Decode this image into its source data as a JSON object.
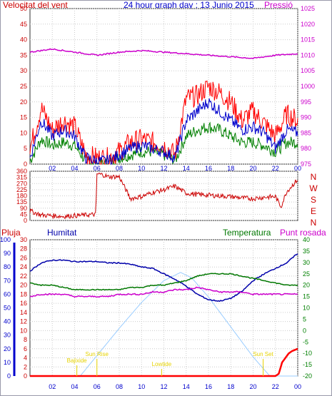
{
  "header": {
    "left_title": "Velocitat del vent",
    "center_title": "24 hour graph day : 13 Junio 2015",
    "right_title": "Pressió"
  },
  "legend_row": {
    "rain": "Pluja",
    "humidity": "Humitat",
    "temperature": "Temperatura",
    "dewpoint": "Punt rosada"
  },
  "colors": {
    "wind_gust": "#ff0000",
    "wind_speed": "#0000cc",
    "wind_avg": "#008000",
    "pressure": "#cc00cc",
    "direction": "#cc0000",
    "rain": "#ff0000",
    "humidity": "#0000aa",
    "temperature": "#007700",
    "dewpoint": "#cc00cc",
    "solar": "#99ccff",
    "annotation": "#e6d200",
    "axis_red": "#cc0000",
    "axis_blue": "#0000cc",
    "axis_green": "#008000",
    "axis_magenta": "#cc00cc"
  },
  "chart_data": [
    {
      "type": "line",
      "panel": "wind-pressure",
      "title": "Velocitat del vent / Pressió",
      "x_ticks": [
        "02",
        "04",
        "06",
        "08",
        "10",
        "12",
        "14",
        "16",
        "18",
        "20",
        "22",
        "00"
      ],
      "y_left": {
        "label": "Velocitat del vent",
        "ticks": [
          0,
          5,
          10,
          15,
          20,
          25,
          30,
          35,
          40,
          45,
          50
        ],
        "ylim": [
          0,
          50
        ]
      },
      "y_right": {
        "label": "Pressió",
        "ticks": [
          975,
          980,
          985,
          990,
          995,
          1000,
          1005,
          1010,
          1015,
          1020,
          1025
        ],
        "ylim": [
          975,
          1025
        ]
      },
      "series": [
        {
          "name": "gust",
          "axis": "left",
          "x": [
            0,
            1,
            2,
            3,
            4,
            5,
            6,
            7,
            8,
            9,
            10,
            11,
            12,
            13,
            14,
            15,
            16,
            17,
            18,
            19,
            20,
            21,
            22,
            23,
            24
          ],
          "values": [
            5,
            18,
            11,
            14,
            12,
            3,
            2,
            2,
            4,
            7,
            8,
            7,
            6,
            3,
            21,
            22,
            25,
            23,
            20,
            14,
            17,
            13,
            9,
            16,
            14
          ]
        },
        {
          "name": "speed",
          "axis": "left",
          "x": [
            0,
            1,
            2,
            3,
            4,
            5,
            6,
            7,
            8,
            9,
            10,
            11,
            12,
            13,
            14,
            15,
            16,
            17,
            18,
            19,
            20,
            21,
            22,
            23,
            24
          ],
          "values": [
            2,
            14,
            9,
            11,
            9,
            2,
            1,
            1,
            3,
            5,
            6,
            5,
            4,
            2,
            14,
            17,
            20,
            17,
            14,
            11,
            12,
            10,
            5,
            11,
            10
          ]
        },
        {
          "name": "average",
          "axis": "left",
          "x": [
            0,
            1,
            2,
            3,
            4,
            5,
            6,
            7,
            8,
            9,
            10,
            11,
            12,
            13,
            14,
            15,
            16,
            17,
            18,
            19,
            20,
            21,
            22,
            23,
            24
          ],
          "values": [
            1,
            8,
            6,
            7,
            6,
            1,
            0,
            0,
            2,
            3,
            4,
            4,
            3,
            1,
            9,
            11,
            12,
            11,
            9,
            7,
            7,
            6,
            4,
            7,
            7
          ]
        },
        {
          "name": "pressure",
          "axis": "right",
          "x": [
            0,
            2,
            4,
            6,
            8,
            10,
            12,
            14,
            16,
            18,
            20,
            22,
            24
          ],
          "values": [
            1011,
            1012,
            1011,
            1010,
            1011,
            1011.5,
            1011,
            1010.5,
            1010,
            1009.5,
            1009,
            1010,
            1010.5
          ]
        }
      ]
    },
    {
      "type": "line",
      "panel": "wind-direction",
      "x_ticks": [
        "02",
        "04",
        "06",
        "08",
        "10",
        "12",
        "14",
        "16",
        "18",
        "20",
        "22",
        "00"
      ],
      "y_left": {
        "ticks": [
          0,
          45,
          90,
          135,
          180,
          225,
          270,
          315,
          360
        ],
        "ylim": [
          0,
          360
        ]
      },
      "compass_labels": [
        "N",
        "W",
        "S",
        "E",
        "N"
      ],
      "series": [
        {
          "name": "direction",
          "x": [
            0,
            0.5,
            1,
            2,
            3,
            4,
            5,
            5.9,
            6,
            6.5,
            7,
            8,
            9,
            10,
            11,
            12,
            13,
            14,
            15,
            16,
            17,
            18,
            19,
            20,
            21,
            22,
            22.5,
            23,
            24
          ],
          "values": [
            70,
            55,
            40,
            35,
            30,
            35,
            40,
            45,
            340,
            335,
            320,
            320,
            160,
            175,
            205,
            225,
            250,
            200,
            190,
            185,
            180,
            175,
            165,
            160,
            170,
            175,
            100,
            210,
            300
          ]
        }
      ]
    },
    {
      "type": "line",
      "panel": "temp-hum-rain",
      "x_ticks": [
        "02",
        "04",
        "06",
        "08",
        "10",
        "12",
        "14",
        "16",
        "18",
        "20",
        "22",
        "00"
      ],
      "y_humidity": {
        "label": "Humitat",
        "ticks": [
          0,
          10,
          20,
          30,
          40,
          50,
          60,
          70,
          80,
          90,
          100
        ],
        "ylim": [
          0,
          100
        ]
      },
      "y_rain": {
        "label": "Pluja",
        "ticks": [
          0,
          2,
          4,
          6,
          8,
          10,
          12,
          14,
          16,
          18,
          20,
          22,
          24,
          26,
          28,
          30
        ],
        "ylim": [
          0,
          30
        ]
      },
      "y_temperature": {
        "label": "Temperatura",
        "ticks": [
          -20,
          -15,
          -10,
          -5,
          0,
          5,
          10,
          15,
          20,
          25,
          30,
          35,
          40
        ],
        "ylim": [
          -20,
          40
        ]
      },
      "annotations": [
        "Bajixide",
        "Sun Rise",
        "Lowtide",
        "Sun Set"
      ],
      "series": [
        {
          "name": "humidity",
          "axis": "humidity",
          "x": [
            0,
            1,
            2,
            3,
            4,
            5,
            6,
            7,
            8,
            9,
            10,
            11,
            12,
            13,
            14,
            15,
            16,
            17,
            18,
            19,
            20,
            21,
            22,
            23,
            24
          ],
          "values": [
            77,
            83,
            85,
            85,
            84,
            84,
            84,
            83,
            83,
            82,
            80,
            79,
            75,
            71,
            66,
            60,
            56,
            55,
            57,
            62,
            70,
            75,
            79,
            83,
            90
          ]
        },
        {
          "name": "temperature",
          "axis": "temperature",
          "x": [
            0,
            1,
            2,
            3,
            4,
            5,
            6,
            7,
            8,
            9,
            10,
            11,
            12,
            13,
            14,
            15,
            16,
            17,
            18,
            19,
            20,
            21,
            22,
            23,
            24
          ],
          "values": [
            21,
            20,
            20,
            19,
            18,
            18,
            18,
            18,
            18,
            19,
            19,
            20,
            20,
            21,
            22,
            24,
            25,
            25,
            25,
            24,
            23,
            22,
            21,
            20,
            20
          ]
        },
        {
          "name": "dewpoint",
          "axis": "temperature",
          "x": [
            0,
            1,
            2,
            3,
            4,
            5,
            6,
            7,
            8,
            9,
            10,
            11,
            12,
            13,
            14,
            15,
            16,
            17,
            18,
            19,
            20,
            21,
            22,
            23,
            24
          ],
          "values": [
            15,
            16,
            16,
            16,
            15,
            15,
            15,
            15,
            16,
            16,
            16,
            17,
            17,
            18,
            18,
            19,
            18,
            17,
            17,
            17,
            16,
            16,
            16,
            16,
            16
          ]
        },
        {
          "name": "solar",
          "axis": "humidity",
          "x": [
            0,
            4.5,
            6,
            8,
            10,
            12,
            13.5,
            14.5,
            16,
            18,
            20,
            21.5,
            24
          ],
          "values": [
            0,
            0,
            15,
            35,
            54,
            70,
            76,
            72,
            58,
            36,
            14,
            0,
            0
          ]
        },
        {
          "name": "rain",
          "axis": "rain",
          "x": [
            0,
            21,
            22,
            22.3,
            22.6,
            22.9,
            23.2,
            23.5,
            24
          ],
          "values": [
            0,
            0,
            0,
            0.5,
            3,
            4,
            5,
            5.5,
            6
          ]
        }
      ]
    }
  ]
}
